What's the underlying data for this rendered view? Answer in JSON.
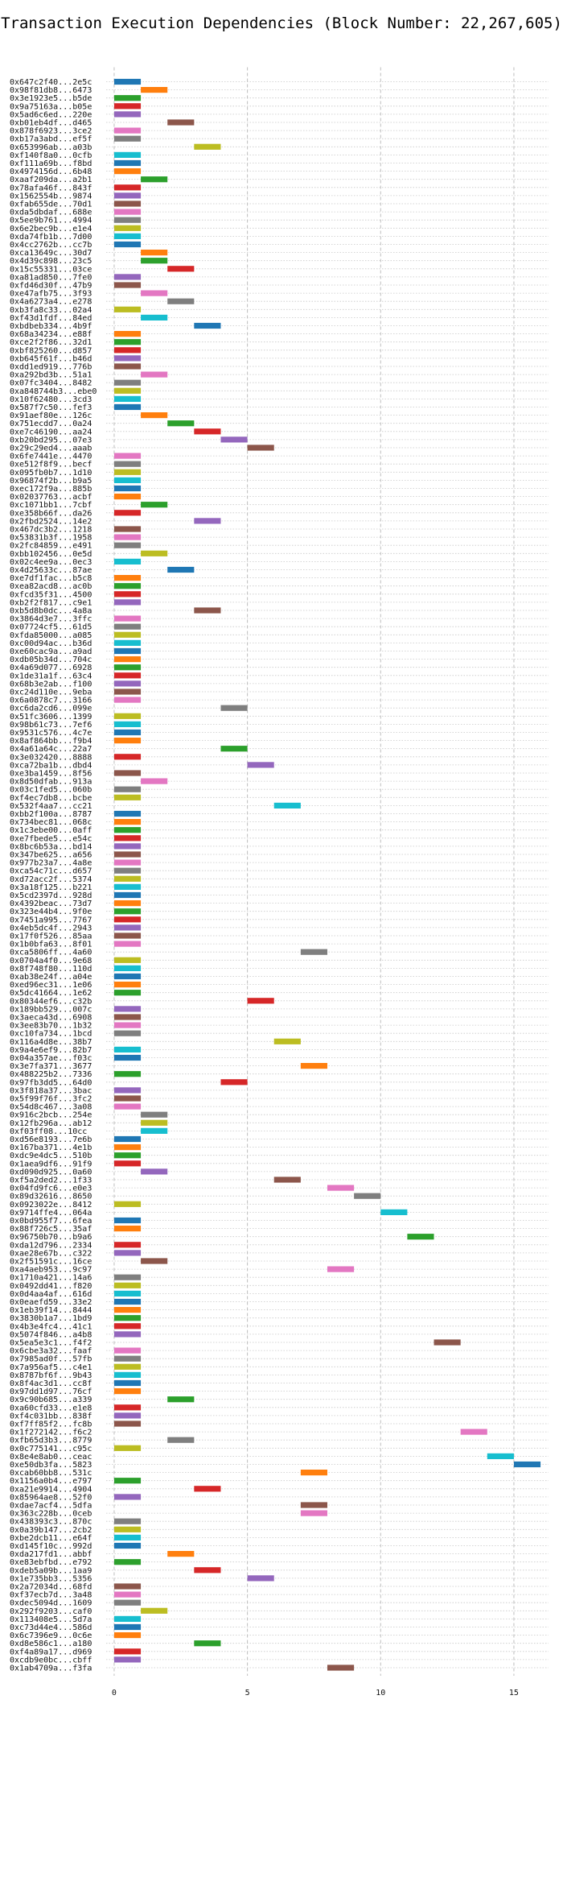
{
  "chart_data": {
    "type": "bar",
    "orientation": "horizontal",
    "title": "Transaction Execution Dependencies (Block Number: 22,267,605)",
    "xlabel": "",
    "ylabel": "",
    "xlim": [
      -0.3,
      16.3
    ],
    "xticks": [
      0,
      5,
      10,
      15
    ],
    "grid": "vertical dashed lines at x ticks; dotted horizontal line per transaction",
    "colors": [
      "#1f77b4",
      "#ff7f0e",
      "#2ca02c",
      "#d62728",
      "#9467bd",
      "#8c564b",
      "#e377c2",
      "#7f7f7f",
      "#bcbd22",
      "#17becf"
    ],
    "transactions": [
      {
        "label": "0x647c2f40...2e5c",
        "start": 0
      },
      {
        "label": "0x98f81db8...6473",
        "start": 1
      },
      {
        "label": "0x3e1923e5...b5de",
        "start": 0
      },
      {
        "label": "0x9a75163a...b05e",
        "start": 0
      },
      {
        "label": "0x5ad6c6ed...220e",
        "start": 0
      },
      {
        "label": "0xb01eb4df...d465",
        "start": 2
      },
      {
        "label": "0x878f6923...3ce2",
        "start": 0
      },
      {
        "label": "0xb17a3abd...ef5f",
        "start": 0
      },
      {
        "label": "0x653996ab...a03b",
        "start": 3
      },
      {
        "label": "0xf140f8a0...0cfb",
        "start": 0
      },
      {
        "label": "0xf111a69b...f8bd",
        "start": 0
      },
      {
        "label": "0x4974156d...6b48",
        "start": 0
      },
      {
        "label": "0xaaf209da...a2b1",
        "start": 1
      },
      {
        "label": "0x78afa46f...843f",
        "start": 0
      },
      {
        "label": "0x1562554b...9874",
        "start": 0
      },
      {
        "label": "0xfab655de...70d1",
        "start": 0
      },
      {
        "label": "0xda5dbdaf...688e",
        "start": 0
      },
      {
        "label": "0x5ee9b761...4994",
        "start": 0
      },
      {
        "label": "0x6e2bec9b...e1e4",
        "start": 0
      },
      {
        "label": "0xda74fb1b...7d00",
        "start": 0
      },
      {
        "label": "0x4cc2762b...cc7b",
        "start": 0
      },
      {
        "label": "0xca13649c...30d7",
        "start": 1
      },
      {
        "label": "0x4d39c898...23c5",
        "start": 1
      },
      {
        "label": "0x15c55331...03ce",
        "start": 2
      },
      {
        "label": "0xa81ad850...7fe0",
        "start": 0
      },
      {
        "label": "0xfd46d30f...47b9",
        "start": 0
      },
      {
        "label": "0xe47afb75...3f93",
        "start": 1
      },
      {
        "label": "0x4a6273a4...e278",
        "start": 2
      },
      {
        "label": "0xb3fa8c33...02a4",
        "start": 0
      },
      {
        "label": "0xf43d1fdf...84ed",
        "start": 1
      },
      {
        "label": "0xbdbeb334...4b9f",
        "start": 3
      },
      {
        "label": "0x68a34234...e88f",
        "start": 0
      },
      {
        "label": "0xce2f2f86...32d1",
        "start": 0
      },
      {
        "label": "0xbf825260...d857",
        "start": 0
      },
      {
        "label": "0xb645f61f...b46d",
        "start": 0
      },
      {
        "label": "0xdd1ed919...776b",
        "start": 0
      },
      {
        "label": "0xa292bd3b...51a1",
        "start": 1
      },
      {
        "label": "0x07fc3404...8482",
        "start": 0
      },
      {
        "label": "0xa848744b3...ebe0",
        "start": 0
      },
      {
        "label": "0x10f62480...3cd3",
        "start": 0
      },
      {
        "label": "0x587f7c50...fef3",
        "start": 0
      },
      {
        "label": "0x91aef80e...126c",
        "start": 1
      },
      {
        "label": "0x751ecdd7...0a24",
        "start": 2
      },
      {
        "label": "0xe7c46190...aa24",
        "start": 3
      },
      {
        "label": "0xb20bd295...07e3",
        "start": 4
      },
      {
        "label": "0x29c29ed4...aaab",
        "start": 5
      },
      {
        "label": "0x6fe7441e...4470",
        "start": 0
      },
      {
        "label": "0xe512f8f9...becf",
        "start": 0
      },
      {
        "label": "0x095fb0b7...1d10",
        "start": 0
      },
      {
        "label": "0x96874f2b...b9a5",
        "start": 0
      },
      {
        "label": "0xec172f9a...885b",
        "start": 0
      },
      {
        "label": "0x02037763...acbf",
        "start": 0
      },
      {
        "label": "0xc1071bb1...7cbf",
        "start": 1
      },
      {
        "label": "0xe358b66f...da26",
        "start": 0
      },
      {
        "label": "0x2fbd2524...14e2",
        "start": 3
      },
      {
        "label": "0x467dc3b2...1218",
        "start": 0
      },
      {
        "label": "0x53831b3f...1958",
        "start": 0
      },
      {
        "label": "0x2fc84859...e491",
        "start": 0
      },
      {
        "label": "0xbb102456...0e5d",
        "start": 1
      },
      {
        "label": "0x02c4ee9a...0ec3",
        "start": 0
      },
      {
        "label": "0x4d25633c...87ae",
        "start": 2
      },
      {
        "label": "0xe7df1fac...b5c8",
        "start": 0
      },
      {
        "label": "0xea82acd8...ac0b",
        "start": 0
      },
      {
        "label": "0xfcd35f31...4500",
        "start": 0
      },
      {
        "label": "0xb2f2f817...c9e1",
        "start": 0
      },
      {
        "label": "0xb5d8b0dc...4a8a",
        "start": 3
      },
      {
        "label": "0x3864d3e7...3ffc",
        "start": 0
      },
      {
        "label": "0x07724cf5...61d5",
        "start": 0
      },
      {
        "label": "0xfda85000...a085",
        "start": 0
      },
      {
        "label": "0xc00d94ac...b36d",
        "start": 0
      },
      {
        "label": "0xe60cac9a...a9ad",
        "start": 0
      },
      {
        "label": "0xdb05b34d...704c",
        "start": 0
      },
      {
        "label": "0x4a69d077...6928",
        "start": 0
      },
      {
        "label": "0x1de31a1f...63c4",
        "start": 0
      },
      {
        "label": "0x68b3e2ab...f100",
        "start": 0
      },
      {
        "label": "0xc24d110e...9eba",
        "start": 0
      },
      {
        "label": "0x6a0878c7...3166",
        "start": 0
      },
      {
        "label": "0xc6da2cd6...099e",
        "start": 4
      },
      {
        "label": "0x51fc3606...1399",
        "start": 0
      },
      {
        "label": "0x98b61c73...7ef6",
        "start": 0
      },
      {
        "label": "0x9531c576...4c7e",
        "start": 0
      },
      {
        "label": "0x8af864bb...f9b4",
        "start": 0
      },
      {
        "label": "0x4a61a64c...22a7",
        "start": 4
      },
      {
        "label": "0x3e032420...8888",
        "start": 0
      },
      {
        "label": "0xca72ba1b...dbd4",
        "start": 5
      },
      {
        "label": "0xe3ba1459...8f56",
        "start": 0
      },
      {
        "label": "0x8d50dfab...913a",
        "start": 1
      },
      {
        "label": "0x03c1fed5...060b",
        "start": 0
      },
      {
        "label": "0xf4ec7db8...bcbe",
        "start": 0
      },
      {
        "label": "0x532f4aa7...cc21",
        "start": 6
      },
      {
        "label": "0xbb2f100a...8787",
        "start": 0
      },
      {
        "label": "0x734bec81...068c",
        "start": 0
      },
      {
        "label": "0x1c3ebe00...0aff",
        "start": 0
      },
      {
        "label": "0xe7fbede5...e54c",
        "start": 0
      },
      {
        "label": "0x8bc6b53a...bd14",
        "start": 0
      },
      {
        "label": "0x347be625...a656",
        "start": 0
      },
      {
        "label": "0x977b23a7...4a8e",
        "start": 0
      },
      {
        "label": "0xca54c71c...d657",
        "start": 0
      },
      {
        "label": "0xd72acc2f...5374",
        "start": 0
      },
      {
        "label": "0x3a18f125...b221",
        "start": 0
      },
      {
        "label": "0x5cd2397d...928d",
        "start": 0
      },
      {
        "label": "0x4392beac...73d7",
        "start": 0
      },
      {
        "label": "0x323e44b4...9f0e",
        "start": 0
      },
      {
        "label": "0x7451a995...7767",
        "start": 0
      },
      {
        "label": "0x4eb5dc4f...2943",
        "start": 0
      },
      {
        "label": "0x17f0f526...85aa",
        "start": 0
      },
      {
        "label": "0x1b0bfa63...8f01",
        "start": 0
      },
      {
        "label": "0xca5806ff...4a60",
        "start": 7
      },
      {
        "label": "0x0704a4f0...9e68",
        "start": 0
      },
      {
        "label": "0x8f748f80...110d",
        "start": 0
      },
      {
        "label": "0xab38e24f...a04e",
        "start": 0
      },
      {
        "label": "0xed96ec31...1e06",
        "start": 0
      },
      {
        "label": "0x5dc41664...1e62",
        "start": 0
      },
      {
        "label": "0x80344ef6...c32b",
        "start": 5
      },
      {
        "label": "0x189bb529...007c",
        "start": 0
      },
      {
        "label": "0x3aeca43d...6908",
        "start": 0
      },
      {
        "label": "0x3ee83b70...1b32",
        "start": 0
      },
      {
        "label": "0xc10fa734...1bcd",
        "start": 0
      },
      {
        "label": "0x116a4d8e...38b7",
        "start": 6
      },
      {
        "label": "0x9a4e6ef9...82b7",
        "start": 0
      },
      {
        "label": "0x04a357ae...f03c",
        "start": 0
      },
      {
        "label": "0x3e7fa371...3677",
        "start": 7
      },
      {
        "label": "0x488225b2...7336",
        "start": 0
      },
      {
        "label": "0x97fb3dd5...64d0",
        "start": 4
      },
      {
        "label": "0x3f818a37...3bac",
        "start": 0
      },
      {
        "label": "0x5f99f76f...3fc2",
        "start": 0
      },
      {
        "label": "0x54d8c467...3a08",
        "start": 0
      },
      {
        "label": "0x916c2bcb...254e",
        "start": 1
      },
      {
        "label": "0x12fb296a...ab12",
        "start": 1
      },
      {
        "label": "0xf03ff08...10cc",
        "start": 1
      },
      {
        "label": "0xd56e8193...7e6b",
        "start": 0
      },
      {
        "label": "0x167ba371...4e1b",
        "start": 0
      },
      {
        "label": "0xdc9e4dc5...510b",
        "start": 0
      },
      {
        "label": "0x1aea9df6...91f9",
        "start": 0
      },
      {
        "label": "0xd090d925...0a60",
        "start": 1
      },
      {
        "label": "0xf5a2ded2...1f33",
        "start": 6
      },
      {
        "label": "0x04fd9fc6...e0e3",
        "start": 8
      },
      {
        "label": "0x89d32616...8650",
        "start": 9
      },
      {
        "label": "0x0923022e...8412",
        "start": 0
      },
      {
        "label": "0x9714ffe4...064a",
        "start": 10
      },
      {
        "label": "0x0bd955f7...6fea",
        "start": 0
      },
      {
        "label": "0x88f726c5...35af",
        "start": 0
      },
      {
        "label": "0x96750b70...b9a6",
        "start": 11
      },
      {
        "label": "0xda12d796...2334",
        "start": 0
      },
      {
        "label": "0xae28e67b...c322",
        "start": 0
      },
      {
        "label": "0x2f51591c...16ce",
        "start": 1
      },
      {
        "label": "0xa4aeb953...9c97",
        "start": 8
      },
      {
        "label": "0x1710a421...14a6",
        "start": 0
      },
      {
        "label": "0x0492dd41...f820",
        "start": 0
      },
      {
        "label": "0x0d4aa4af...616d",
        "start": 0
      },
      {
        "label": "0x0eaefd59...33e2",
        "start": 0
      },
      {
        "label": "0x1eb39f14...8444",
        "start": 0
      },
      {
        "label": "0x3830b1a7...1bd9",
        "start": 0
      },
      {
        "label": "0x4b3e4fc4...41c1",
        "start": 0
      },
      {
        "label": "0x5074f846...a4b8",
        "start": 0
      },
      {
        "label": "0x5ea5e3c1...f4f2",
        "start": 12
      },
      {
        "label": "0x6cbe3a32...faaf",
        "start": 0
      },
      {
        "label": "0x7985ad0f...57fb",
        "start": 0
      },
      {
        "label": "0x7a956af5...c4e1",
        "start": 0
      },
      {
        "label": "0x8787bf6f...9b43",
        "start": 0
      },
      {
        "label": "0x8f4ac3d1...cc8f",
        "start": 0
      },
      {
        "label": "0x97dd1d97...76cf",
        "start": 0
      },
      {
        "label": "0x9c90b685...a339",
        "start": 2
      },
      {
        "label": "0xa60cfd33...e1e8",
        "start": 0
      },
      {
        "label": "0xf4c031bb...838f",
        "start": 0
      },
      {
        "label": "0xf7ff85f2...fc8b",
        "start": 0
      },
      {
        "label": "0x1f272142...f6c2",
        "start": 13
      },
      {
        "label": "0xfb65d3b3...8779",
        "start": 2
      },
      {
        "label": "0x0c775141...c95c",
        "start": 0
      },
      {
        "label": "0x8e4e8ab0...ceac",
        "start": 14
      },
      {
        "label": "0xe50db3fa...5823",
        "start": 15
      },
      {
        "label": "0xcab60bb8...531c",
        "start": 7
      },
      {
        "label": "0x1156a0b4...e797",
        "start": 0
      },
      {
        "label": "0xa21e9914...4904",
        "start": 3
      },
      {
        "label": "0x85964ae8...52f0",
        "start": 0
      },
      {
        "label": "0xdae7acf4...5dfa",
        "start": 7
      },
      {
        "label": "0x363c228b...0ceb",
        "start": 7
      },
      {
        "label": "0x438393c3...870c",
        "start": 0
      },
      {
        "label": "0x0a39b147...2cb2",
        "start": 0
      },
      {
        "label": "0xbe2dcb11...e64f",
        "start": 0
      },
      {
        "label": "0xd145f10c...992d",
        "start": 0
      },
      {
        "label": "0xda217fd1...abbf",
        "start": 2
      },
      {
        "label": "0xe83ebfbd...e792",
        "start": 0
      },
      {
        "label": "0xdeb5a09b...1aa9",
        "start": 3
      },
      {
        "label": "0x1e735bb3...5356",
        "start": 5
      },
      {
        "label": "0x2a72034d...68fd",
        "start": 0
      },
      {
        "label": "0xf37ecb7d...3a48",
        "start": 0
      },
      {
        "label": "0xdec5094d...1609",
        "start": 0
      },
      {
        "label": "0x292f9203...caf0",
        "start": 1
      },
      {
        "label": "0x113408e5...5d7a",
        "start": 0
      },
      {
        "label": "0xc73d44e4...586d",
        "start": 0
      },
      {
        "label": "0x6c7396e9...0c6e",
        "start": 0
      },
      {
        "label": "0xd8e586c1...a180",
        "start": 3
      },
      {
        "label": "0xf4a89a17...d969",
        "start": 0
      },
      {
        "label": "0xcdb9e0bc...cbff",
        "start": 0
      },
      {
        "label": "0x1ab4709a...f3fa",
        "start": 8
      }
    ]
  }
}
